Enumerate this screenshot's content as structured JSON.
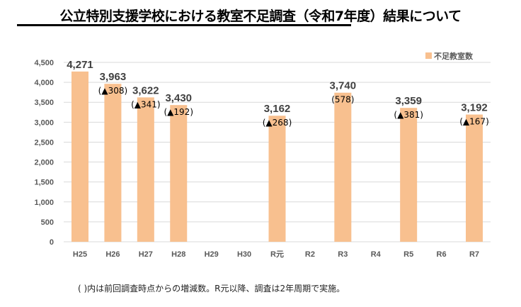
{
  "chart_data": {
    "type": "bar",
    "title": "公立特別支援学校における教室不足調査（令和7年度）結果について",
    "categories": [
      "H25",
      "H26",
      "H27",
      "H28",
      "H29",
      "H30",
      "R元",
      "R2",
      "R3",
      "R4",
      "R5",
      "R6",
      "R7"
    ],
    "series": [
      {
        "name": "不足教室数",
        "values": [
          4271,
          3963,
          3622,
          3430,
          null,
          null,
          3162,
          null,
          3740,
          null,
          3359,
          null,
          3192
        ]
      }
    ],
    "value_labels": [
      "4,271",
      "3,963",
      "3,622",
      "3,430",
      "",
      "",
      "3,162",
      "",
      "3,740",
      "",
      "3,359",
      "",
      "3,192"
    ],
    "change_labels": [
      "",
      "(▲308)",
      "(▲341)",
      "(▲192)",
      "",
      "",
      "(▲268)",
      "",
      "(578)",
      "",
      "(▲381)",
      "",
      "(▲167)"
    ],
    "yticks": [
      "0",
      "500",
      "1,000",
      "1,500",
      "2,000",
      "2,500",
      "3,000",
      "3,500",
      "4,000",
      "4,500"
    ],
    "ylim": [
      0,
      4500
    ],
    "grid": true,
    "legend": "top-right",
    "bar_color": "#f8c08f",
    "footnote": "( )内は前回調査時点からの増減数。R元以降、調査は2年周期で実施。"
  }
}
